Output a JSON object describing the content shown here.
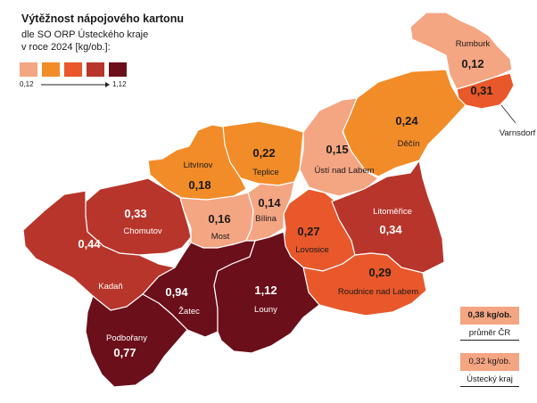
{
  "title": "Výtěžnost nápojového kartonu",
  "subtitle_line1": "dle SO ORP Ústeckého kraje",
  "subtitle_line2": "v roce 2024 [kg/ob.]:",
  "scale": {
    "min_label": "0,12",
    "max_label": "1,12",
    "colors": [
      "#f4a582",
      "#f28c28",
      "#e8582a",
      "#b8352b",
      "#6b0f1a"
    ]
  },
  "colors": {
    "outline": "#ffffff",
    "background": "#ffffff"
  },
  "reference": {
    "cr_value": "0,38 kg/ob.",
    "cr_label": "průměr ČR",
    "kraj_value": "0,32 kg/ob.",
    "kraj_label": "Ústecký kraj"
  },
  "regions": [
    {
      "id": "rumburk",
      "name": "Rumburk",
      "value": "0,12",
      "color": "#f4a582"
    },
    {
      "id": "varnsdorf",
      "name": "Varnsdorf",
      "value": "0,31",
      "color": "#e8582a"
    },
    {
      "id": "decin",
      "name": "Děčín",
      "value": "0,24",
      "color": "#f28c28"
    },
    {
      "id": "usti",
      "name": "Ústí nad Labem",
      "value": "0,15",
      "color": "#f4a582"
    },
    {
      "id": "teplice",
      "name": "Teplice",
      "value": "0,22",
      "color": "#f28c28"
    },
    {
      "id": "litvinov",
      "name": "Litvínov",
      "value": "0,18",
      "color": "#f28c28"
    },
    {
      "id": "chomutov",
      "name": "Chomutov",
      "value": "0,33",
      "color": "#b8352b"
    },
    {
      "id": "kadan",
      "name": "Kadaň",
      "value": "0,44",
      "color": "#b8352b"
    },
    {
      "id": "most",
      "name": "Most",
      "value": "0,16",
      "color": "#f4a582"
    },
    {
      "id": "bilina",
      "name": "Bílina",
      "value": "0,14",
      "color": "#f4a582"
    },
    {
      "id": "lovosice",
      "name": "Lovosice",
      "value": "0,27",
      "color": "#e8582a"
    },
    {
      "id": "litomerice",
      "name": "Litoměřice",
      "value": "0,34",
      "color": "#b8352b"
    },
    {
      "id": "roudnice",
      "name": "Roudnice nad Labem",
      "value": "0,29",
      "color": "#e8582a"
    },
    {
      "id": "zatec",
      "name": "Žatec",
      "value": "0,94",
      "color": "#6b0f1a"
    },
    {
      "id": "louny",
      "name": "Louny",
      "value": "1,12",
      "color": "#6b0f1a"
    },
    {
      "id": "podborany",
      "name": "Podbořany",
      "value": "0,77",
      "color": "#6b0f1a"
    }
  ]
}
